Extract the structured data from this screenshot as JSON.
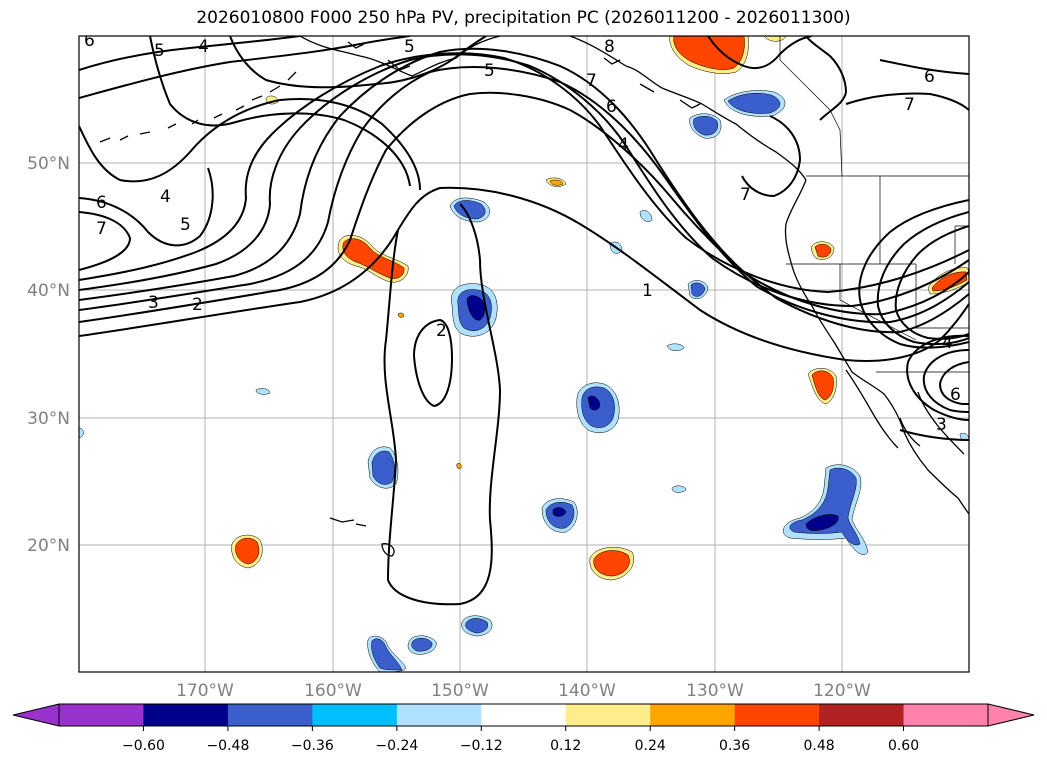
{
  "title": "2026010800 F000 250 hPa PV, precipitation PC (2026011200 - 2026011300)",
  "lat_labels": [
    "50°N",
    "40°N",
    "30°N",
    "20°N"
  ],
  "lon_labels": [
    "170°W",
    "160°W",
    "150°W",
    "140°W",
    "130°W",
    "120°W"
  ],
  "pv_contour_labels": [
    "6",
    "5",
    "4",
    "5",
    "8",
    "7",
    "6",
    "4",
    "5",
    "7",
    "6",
    "7",
    "6",
    "4",
    "5",
    "7",
    "1",
    "3",
    "2",
    "2",
    "4",
    "6",
    "3"
  ],
  "colorbar": {
    "ticks": [
      "−0.60",
      "−0.48",
      "−0.36",
      "−0.24",
      "−0.12",
      "0.12",
      "0.24",
      "0.36",
      "0.48",
      "0.60"
    ],
    "colors": [
      "#9932cc",
      "#00008b",
      "#3a5fcd",
      "#00bfff",
      "#b0e2ff",
      "#ffffff",
      "#ffec8b",
      "#ffa500",
      "#ff4500",
      "#b22222",
      "#ff82ab"
    ],
    "underflow_color": "#9932cc",
    "overflow_color": "#ff82ab"
  },
  "colors": {
    "neg_light": "#b0e2ff",
    "neg_mid": "#00bfff",
    "neg_blue": "#3a5fcd",
    "neg_dark": "#00008b",
    "pos_light": "#ffec8b",
    "pos_orange": "#ffa500",
    "pos_red": "#ff4500"
  }
}
